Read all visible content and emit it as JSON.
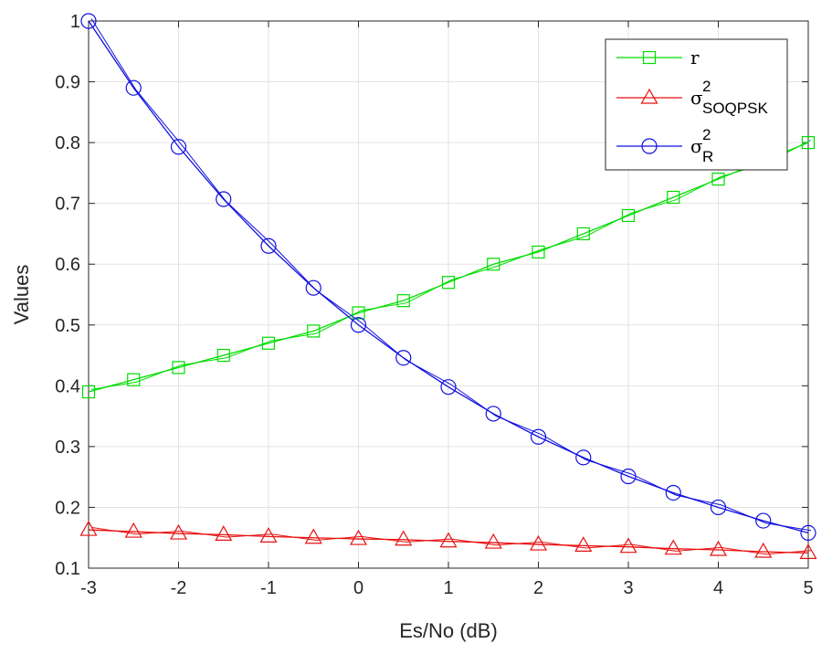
{
  "chart_data": {
    "type": "line",
    "xlabel": "Es/No (dB)",
    "ylabel": "Values",
    "xlim": [
      -3,
      5
    ],
    "ylim": [
      0.1,
      1
    ],
    "xticks": [
      "-3",
      "-2",
      "-1",
      "0",
      "1",
      "2",
      "3",
      "4",
      "5"
    ],
    "yticks": [
      "0.1",
      "0.2",
      "0.3",
      "0.4",
      "0.5",
      "0.6",
      "0.7",
      "0.8",
      "0.9",
      "1"
    ],
    "grid": true,
    "legend_position": "top-right",
    "x": [
      -3,
      -2.5,
      -2,
      -1.5,
      -1,
      -0.5,
      0,
      0.5,
      1,
      1.5,
      2,
      2.5,
      3,
      3.5,
      4,
      4.5,
      5
    ],
    "series": [
      {
        "name": "r",
        "legend_symbol": "r",
        "legend_subscript": "",
        "legend_superscript": "",
        "color": "#00dd00",
        "marker": "square",
        "values": [
          0.39,
          0.41,
          0.43,
          0.45,
          0.47,
          0.49,
          0.52,
          0.54,
          0.57,
          0.6,
          0.62,
          0.65,
          0.68,
          0.71,
          0.74,
          0.77,
          0.8
        ]
      },
      {
        "name": "σ²SOQPSK",
        "legend_symbol": "σ",
        "legend_subscript": "SOQPSK",
        "legend_superscript": "2",
        "color": "#e81010",
        "marker": "triangle",
        "values": [
          0.163,
          0.16,
          0.157,
          0.155,
          0.152,
          0.15,
          0.148,
          0.147,
          0.144,
          0.142,
          0.139,
          0.137,
          0.135,
          0.132,
          0.13,
          0.127,
          0.125
        ]
      },
      {
        "name": "σ²R",
        "legend_symbol": "σ",
        "legend_subscript": "R",
        "legend_superscript": "2",
        "color": "#1010e0",
        "marker": "circle",
        "values": [
          1.0,
          0.89,
          0.793,
          0.707,
          0.63,
          0.561,
          0.5,
          0.446,
          0.398,
          0.354,
          0.316,
          0.282,
          0.251,
          0.224,
          0.2,
          0.178,
          0.158
        ]
      }
    ]
  }
}
